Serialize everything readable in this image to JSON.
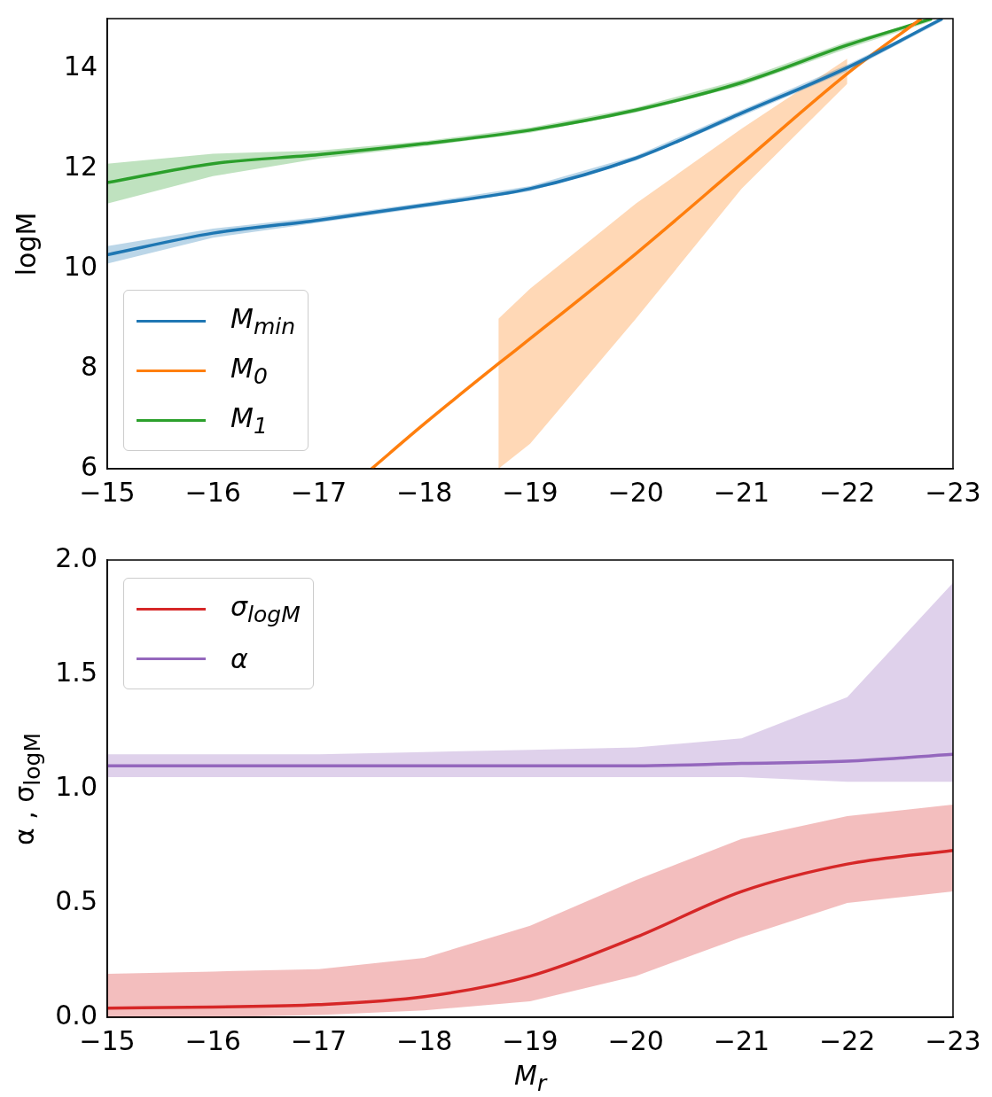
{
  "chart_data": [
    {
      "type": "line",
      "ylabel": "logM",
      "legend": "bottom left",
      "grid": false,
      "xlim": [
        -15,
        -23
      ],
      "xticks": [
        {
          "value": -15,
          "label": "−15"
        },
        {
          "value": -16,
          "label": "−16"
        },
        {
          "value": -17,
          "label": "−17"
        },
        {
          "value": -18,
          "label": "−18"
        },
        {
          "value": -19,
          "label": "−19"
        },
        {
          "value": -20,
          "label": "−20"
        },
        {
          "value": -21,
          "label": "−21"
        },
        {
          "value": -22,
          "label": "−22"
        },
        {
          "value": -23,
          "label": "−23"
        }
      ],
      "ylim": [
        6,
        15
      ],
      "yticks": [
        6,
        8,
        10,
        12,
        14
      ],
      "series": [
        {
          "name": "M$_{min}$",
          "color": "#1f77b4",
          "x": [
            -15,
            -16,
            -17,
            -18,
            -19,
            -20,
            -21,
            -22,
            -22.9
          ],
          "values": [
            10.28,
            10.71,
            10.97,
            11.27,
            11.6,
            12.21,
            13.11,
            14.02,
            15.0
          ],
          "lower": [
            10.1,
            10.62,
            10.92,
            11.22,
            11.55,
            12.16,
            13.05,
            13.95,
            14.95
          ],
          "upper": [
            10.45,
            10.8,
            11.03,
            11.32,
            11.65,
            12.26,
            13.17,
            14.08,
            15.0
          ]
        },
        {
          "name": "M$_{0}$",
          "color": "#ff7f0e",
          "x": [
            -17.5,
            -18,
            -18.7,
            -19,
            -20,
            -21,
            -22,
            -22.7
          ],
          "values": [
            6.0,
            6.9,
            8.1,
            8.6,
            10.3,
            12.1,
            13.9,
            15.0
          ],
          "lower": [
            null,
            null,
            6.0,
            6.5,
            9.0,
            11.6,
            13.7,
            null
          ],
          "upper": [
            null,
            null,
            9.0,
            9.6,
            11.3,
            12.8,
            14.2,
            null
          ]
        },
        {
          "name": "M$_{1}$",
          "color": "#2ca02c",
          "x": [
            -15,
            -16,
            -17,
            -18,
            -19,
            -20,
            -21,
            -22,
            -22.8
          ],
          "values": [
            11.72,
            12.1,
            12.28,
            12.5,
            12.77,
            13.17,
            13.72,
            14.47,
            15.0
          ],
          "lower": [
            11.3,
            11.85,
            12.2,
            12.45,
            12.72,
            13.12,
            13.66,
            14.4,
            14.95
          ],
          "upper": [
            12.1,
            12.3,
            12.36,
            12.55,
            12.82,
            13.22,
            13.78,
            14.54,
            15.0
          ]
        }
      ]
    },
    {
      "type": "line",
      "xlabel": "M$_{r}$",
      "ylabel": "α , σ$_{logM}$",
      "legend": "top left",
      "grid": false,
      "xlim": [
        -15,
        -23
      ],
      "xticks": [
        {
          "value": -15,
          "label": "−15"
        },
        {
          "value": -16,
          "label": "−16"
        },
        {
          "value": -17,
          "label": "−17"
        },
        {
          "value": -18,
          "label": "−18"
        },
        {
          "value": -19,
          "label": "−19"
        },
        {
          "value": -20,
          "label": "−20"
        },
        {
          "value": -21,
          "label": "−21"
        },
        {
          "value": -22,
          "label": "−22"
        },
        {
          "value": -23,
          "label": "−23"
        }
      ],
      "ylim": [
        0,
        2
      ],
      "yticks": [
        {
          "value": 0,
          "label": "0.0"
        },
        {
          "value": 0.5,
          "label": "0.5"
        },
        {
          "value": 1,
          "label": "1.0"
        },
        {
          "value": 1.5,
          "label": "1.5"
        },
        {
          "value": 2,
          "label": "2.0"
        }
      ],
      "series": [
        {
          "name": "σ$_{logM}$",
          "color": "#d62728",
          "x": [
            -15,
            -16,
            -17,
            -18,
            -19,
            -20,
            -21,
            -22,
            -23
          ],
          "values": [
            0.04,
            0.045,
            0.055,
            0.09,
            0.18,
            0.35,
            0.55,
            0.67,
            0.73
          ],
          "lower": [
            0.0,
            0.0,
            0.01,
            0.03,
            0.07,
            0.18,
            0.35,
            0.5,
            0.55
          ],
          "upper": [
            0.19,
            0.2,
            0.21,
            0.26,
            0.4,
            0.6,
            0.78,
            0.88,
            0.93
          ]
        },
        {
          "name": "α",
          "color": "#9467bd",
          "x": [
            -15,
            -16,
            -17,
            -18,
            -19,
            -20,
            -21,
            -22,
            -23
          ],
          "values": [
            1.1,
            1.1,
            1.1,
            1.1,
            1.1,
            1.1,
            1.11,
            1.12,
            1.15
          ],
          "lower": [
            1.05,
            1.05,
            1.05,
            1.05,
            1.05,
            1.05,
            1.05,
            1.03,
            1.03
          ],
          "upper": [
            1.15,
            1.15,
            1.15,
            1.16,
            1.17,
            1.18,
            1.22,
            1.4,
            1.9
          ]
        }
      ]
    }
  ]
}
